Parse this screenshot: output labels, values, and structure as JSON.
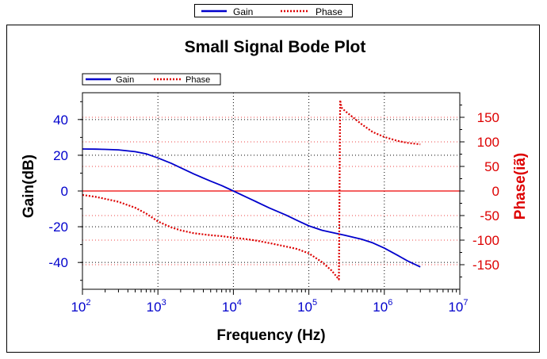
{
  "outer_legend": {
    "entries": [
      {
        "label": "Gain",
        "color": "#0000cc",
        "style": "solid"
      },
      {
        "label": "Phase",
        "color": "#dd0000",
        "style": "dotted"
      }
    ]
  },
  "chart_data": {
    "type": "line",
    "title": "Small Signal Bode Plot",
    "xlabel": "Frequency (Hz)",
    "ylabel": "Gain(dB)",
    "y2label": "Phase(iã)",
    "x_scale": "log",
    "xlim": [
      100,
      10000000
    ],
    "ylim": [
      -55,
      55
    ],
    "y2lim": [
      -200,
      200
    ],
    "x_ticks": [
      {
        "base": "10",
        "exp": "2",
        "value": 100
      },
      {
        "base": "10",
        "exp": "3",
        "value": 1000
      },
      {
        "base": "10",
        "exp": "4",
        "value": 10000
      },
      {
        "base": "10",
        "exp": "5",
        "value": 100000
      },
      {
        "base": "10",
        "exp": "6",
        "value": 1000000
      },
      {
        "base": "10",
        "exp": "7",
        "value": 10000000
      }
    ],
    "y_ticks": [
      "40",
      "20",
      "0",
      "-20",
      "-40"
    ],
    "y_tick_values": [
      40,
      20,
      0,
      -20,
      -40
    ],
    "y2_ticks": [
      "150",
      "100",
      "50",
      "0",
      "-50",
      "-100",
      "-150"
    ],
    "y2_tick_values": [
      150,
      100,
      50,
      0,
      -50,
      -100,
      -150
    ],
    "grid": true,
    "zero_line": 0,
    "legend": {
      "position": "top-left"
    },
    "colors": {
      "gain": "#0000cc",
      "phase": "#dd0000",
      "y1_ticks": "#0000cc",
      "y2_ticks": "#dd0000"
    },
    "series": [
      {
        "name": "Gain",
        "axis": "left",
        "style": "solid",
        "x": [
          100,
          150,
          200,
          300,
          500,
          700,
          1000,
          1500,
          2000,
          3000,
          5000,
          7000,
          10000,
          15000,
          20000,
          30000,
          50000,
          70000,
          100000,
          150000,
          200000,
          300000,
          500000,
          700000,
          1000000,
          1500000,
          2000000,
          3000000
        ],
        "y": [
          23.5,
          23.4,
          23.3,
          23,
          22,
          20.8,
          18.5,
          15.5,
          13,
          9.5,
          5.5,
          3,
          0,
          -3.5,
          -6,
          -9.5,
          -13.5,
          -16.5,
          -19.5,
          -22,
          -23.2,
          -24.8,
          -27,
          -29,
          -32,
          -36,
          -39,
          -42.5
        ]
      },
      {
        "name": "Phase",
        "axis": "right",
        "style": "dotted",
        "x": [
          100,
          150,
          200,
          300,
          500,
          700,
          1000,
          1500,
          2000,
          3000,
          5000,
          7000,
          10000,
          15000,
          20000,
          30000,
          50000,
          70000,
          100000,
          150000,
          200000,
          250000,
          260000,
          270000,
          300000,
          500000,
          700000,
          1000000,
          1500000,
          2000000,
          3000000
        ],
        "y": [
          -8,
          -12,
          -16,
          -22,
          -34,
          -46,
          -62,
          -74,
          -80,
          -86,
          -90,
          -92,
          -95,
          -98,
          -101,
          -106,
          -113,
          -118,
          -127,
          -145,
          -162,
          -180,
          185,
          170,
          163,
          136,
          120,
          110,
          102,
          98,
          95
        ]
      }
    ]
  }
}
